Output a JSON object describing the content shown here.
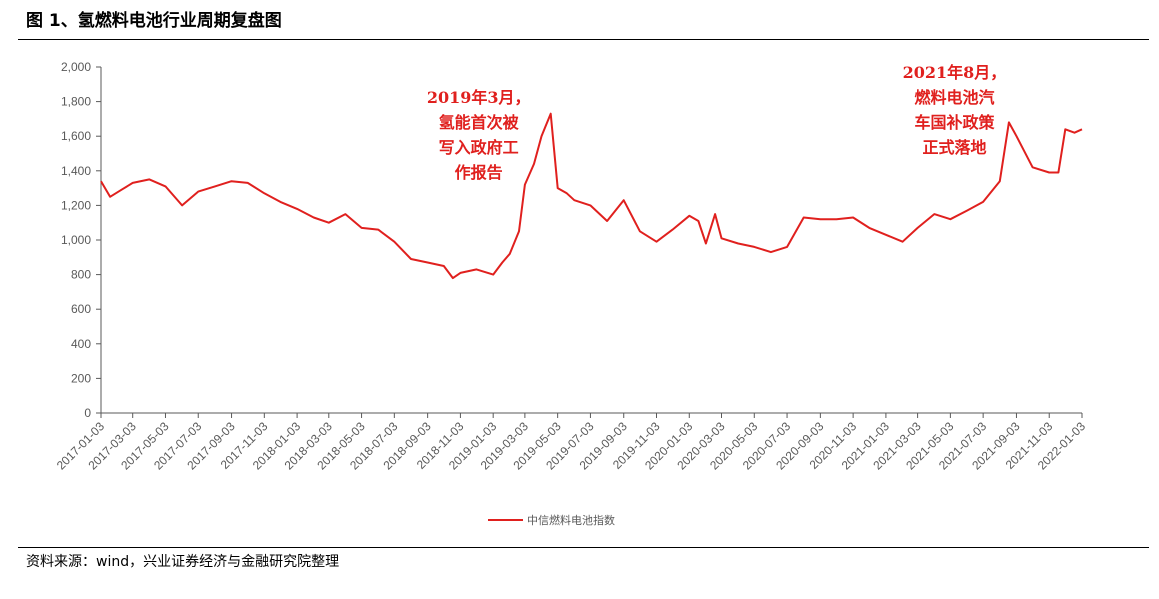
{
  "figure": {
    "title": "图 1、氢燃料电池行业周期复盘图",
    "source": "资料来源：wind，兴业证券经济与金融研究院整理"
  },
  "colors": {
    "series": "#e0201e",
    "axis": "#595959",
    "annotation": "#e0201e"
  },
  "chart_data": {
    "type": "line",
    "title": "",
    "xlabel": "",
    "ylabel": "",
    "ylim": [
      0,
      2000
    ],
    "y_ticks": [
      "0",
      "200",
      "400",
      "600",
      "800",
      "1,000",
      "1,200",
      "1,400",
      "1,600",
      "1,800",
      "2,000"
    ],
    "x_ticks": [
      "2017-01-03",
      "2017-03-03",
      "2017-05-03",
      "2017-07-03",
      "2017-09-03",
      "2017-11-03",
      "2018-01-03",
      "2018-03-03",
      "2018-05-03",
      "2018-07-03",
      "2018-09-03",
      "2018-11-03",
      "2019-01-03",
      "2019-03-03",
      "2019-05-03",
      "2019-07-03",
      "2019-09-03",
      "2019-11-03",
      "2020-01-03",
      "2020-03-03",
      "2020-05-03",
      "2020-07-03",
      "2020-09-03",
      "2020-11-03",
      "2021-01-03",
      "2021-03-03",
      "2021-05-03",
      "2021-07-03",
      "2021-09-03",
      "2021-11-03",
      "2022-01-03"
    ],
    "grid": false,
    "legend_position": "bottom",
    "series": [
      {
        "name": "中信燃料电池指数",
        "x": [
          "2017-01-03",
          "2017-01-20",
          "2017-02-10",
          "2017-03-03",
          "2017-04-03",
          "2017-05-03",
          "2017-06-03",
          "2017-07-03",
          "2017-08-03",
          "2017-09-03",
          "2017-10-03",
          "2017-11-03",
          "2017-12-03",
          "2018-01-03",
          "2018-02-03",
          "2018-03-03",
          "2018-04-03",
          "2018-05-03",
          "2018-06-03",
          "2018-07-03",
          "2018-08-03",
          "2018-09-03",
          "2018-10-03",
          "2018-10-20",
          "2018-11-03",
          "2018-12-03",
          "2019-01-03",
          "2019-01-20",
          "2019-02-03",
          "2019-02-20",
          "2019-03-03",
          "2019-03-20",
          "2019-04-03",
          "2019-04-20",
          "2019-05-03",
          "2019-05-20",
          "2019-06-03",
          "2019-07-03",
          "2019-08-03",
          "2019-09-03",
          "2019-10-03",
          "2019-11-03",
          "2019-12-03",
          "2020-01-03",
          "2020-01-20",
          "2020-02-03",
          "2020-02-20",
          "2020-03-03",
          "2020-04-03",
          "2020-05-03",
          "2020-06-03",
          "2020-07-03",
          "2020-08-03",
          "2020-09-03",
          "2020-10-03",
          "2020-11-03",
          "2020-12-03",
          "2021-01-03",
          "2021-02-03",
          "2021-03-03",
          "2021-04-03",
          "2021-05-03",
          "2021-06-03",
          "2021-07-03",
          "2021-08-03",
          "2021-08-20",
          "2021-09-03",
          "2021-10-03",
          "2021-11-03",
          "2021-11-20",
          "2021-12-03",
          "2021-12-20",
          "2022-01-03"
        ],
        "values": [
          1340,
          1250,
          1290,
          1330,
          1350,
          1310,
          1200,
          1280,
          1310,
          1340,
          1330,
          1270,
          1220,
          1180,
          1130,
          1100,
          1150,
          1070,
          1060,
          990,
          890,
          870,
          850,
          780,
          810,
          830,
          800,
          870,
          920,
          1050,
          1320,
          1440,
          1600,
          1730,
          1300,
          1270,
          1230,
          1200,
          1110,
          1230,
          1050,
          990,
          1060,
          1140,
          1110,
          980,
          1150,
          1010,
          980,
          960,
          930,
          960,
          1130,
          1120,
          1120,
          1130,
          1070,
          1030,
          990,
          1070,
          1150,
          1120,
          1170,
          1220,
          1340,
          1680,
          1600,
          1420,
          1390,
          1390,
          1640,
          1620,
          1640
        ]
      }
    ],
    "annotations": [
      {
        "lines": [
          "2019年3月，",
          "氢能首次被",
          "写入政府工",
          "作报告"
        ],
        "x": "2019-05-03"
      },
      {
        "lines": [
          "2021年8月，",
          "燃料电池汽",
          "车国补政策",
          "正式落地"
        ],
        "x": "2021-09-03"
      }
    ]
  }
}
